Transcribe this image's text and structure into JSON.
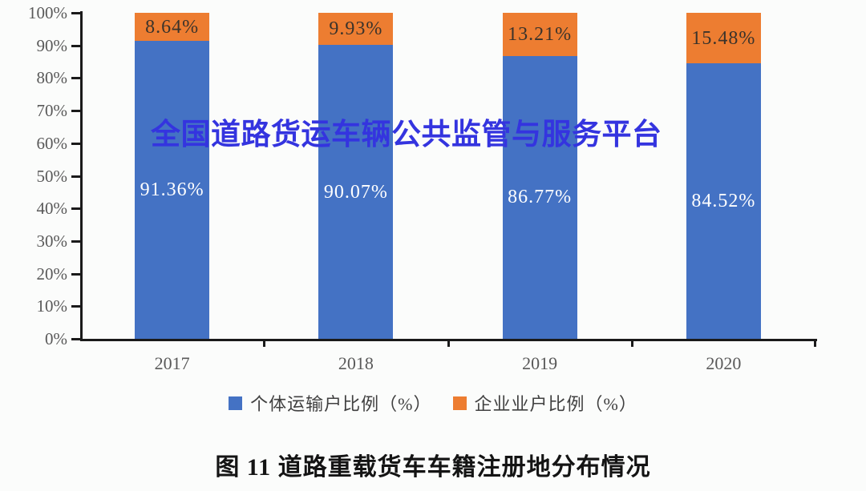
{
  "watermark": "全国道路货运车辆公共监管与服务平台",
  "caption": "图 11 道路重载货车车籍注册地分布情况",
  "colors": {
    "individual_series": "#4472C4",
    "enterprise_series": "#ED7D31",
    "watermark": "#3434DF",
    "axis": "#1a1a1a",
    "tick_label": "#595959"
  },
  "chart_data": {
    "type": "bar",
    "stacked": true,
    "title": "图 11 道路重载货车车籍注册地分布情况",
    "categories": [
      "2017",
      "2018",
      "2019",
      "2020"
    ],
    "series": [
      {
        "name": "个体运输户比例（%）",
        "color": "#4472C4",
        "values": [
          91.36,
          90.07,
          86.77,
          84.52
        ],
        "data_labels": [
          "91.36%",
          "90.07%",
          "86.77%",
          "84.52%"
        ],
        "label_color": "#ffffff"
      },
      {
        "name": "企业业户比例（%）",
        "color": "#ED7D31",
        "values": [
          8.64,
          9.93,
          13.21,
          15.48
        ],
        "data_labels": [
          "8.64%",
          "9.93%",
          "13.21%",
          "15.48%"
        ],
        "label_color": "#3a332b"
      }
    ],
    "xlabel": "",
    "ylabel": "",
    "ylim": [
      0,
      100
    ],
    "ytick_labels": [
      "0%",
      "10%",
      "20%",
      "30%",
      "40%",
      "50%",
      "60%",
      "70%",
      "80%",
      "90%",
      "100%"
    ],
    "grid": false,
    "legend_position": "bottom"
  }
}
